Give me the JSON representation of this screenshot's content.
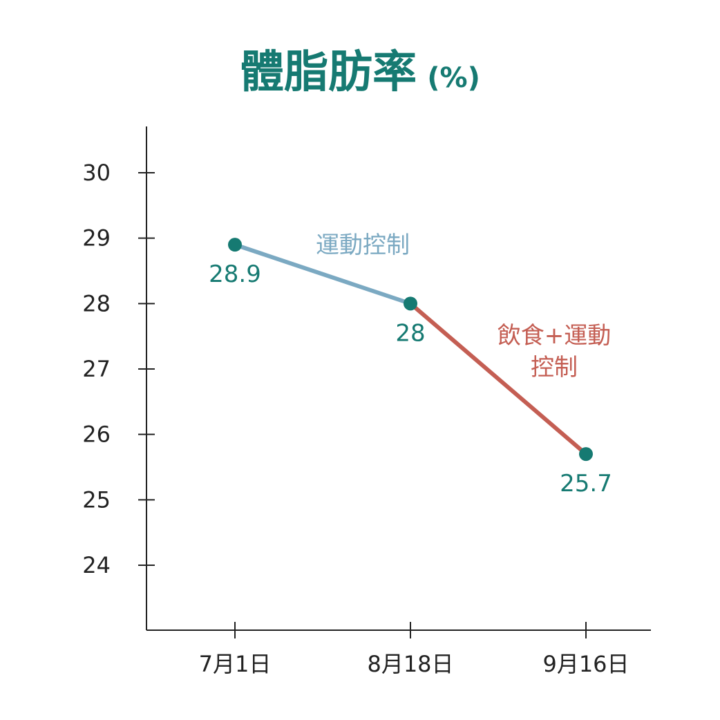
{
  "chart_data": {
    "type": "line",
    "title": "體脂肪率",
    "title_unit": "(%)",
    "categories": [
      "7月1日",
      "8月18日",
      "9月16日"
    ],
    "values": [
      28.9,
      28,
      25.7
    ],
    "data_labels": [
      "28.9",
      "28",
      "25.7"
    ],
    "yticks": [
      24,
      25,
      26,
      27,
      28,
      29,
      30
    ],
    "ylim": [
      23,
      30.7
    ],
    "grid": false,
    "segments": [
      {
        "from": 0,
        "to": 1,
        "label_lines": [
          "運動控制"
        ],
        "color": "#7BA9C2"
      },
      {
        "from": 1,
        "to": 2,
        "label_lines": [
          "飲食+運動",
          "控制"
        ],
        "color": "#C45E53"
      }
    ]
  },
  "colors": {
    "title": "#167A72",
    "point": "#167A72",
    "data_label": "#167A72",
    "axis": "#222222"
  }
}
